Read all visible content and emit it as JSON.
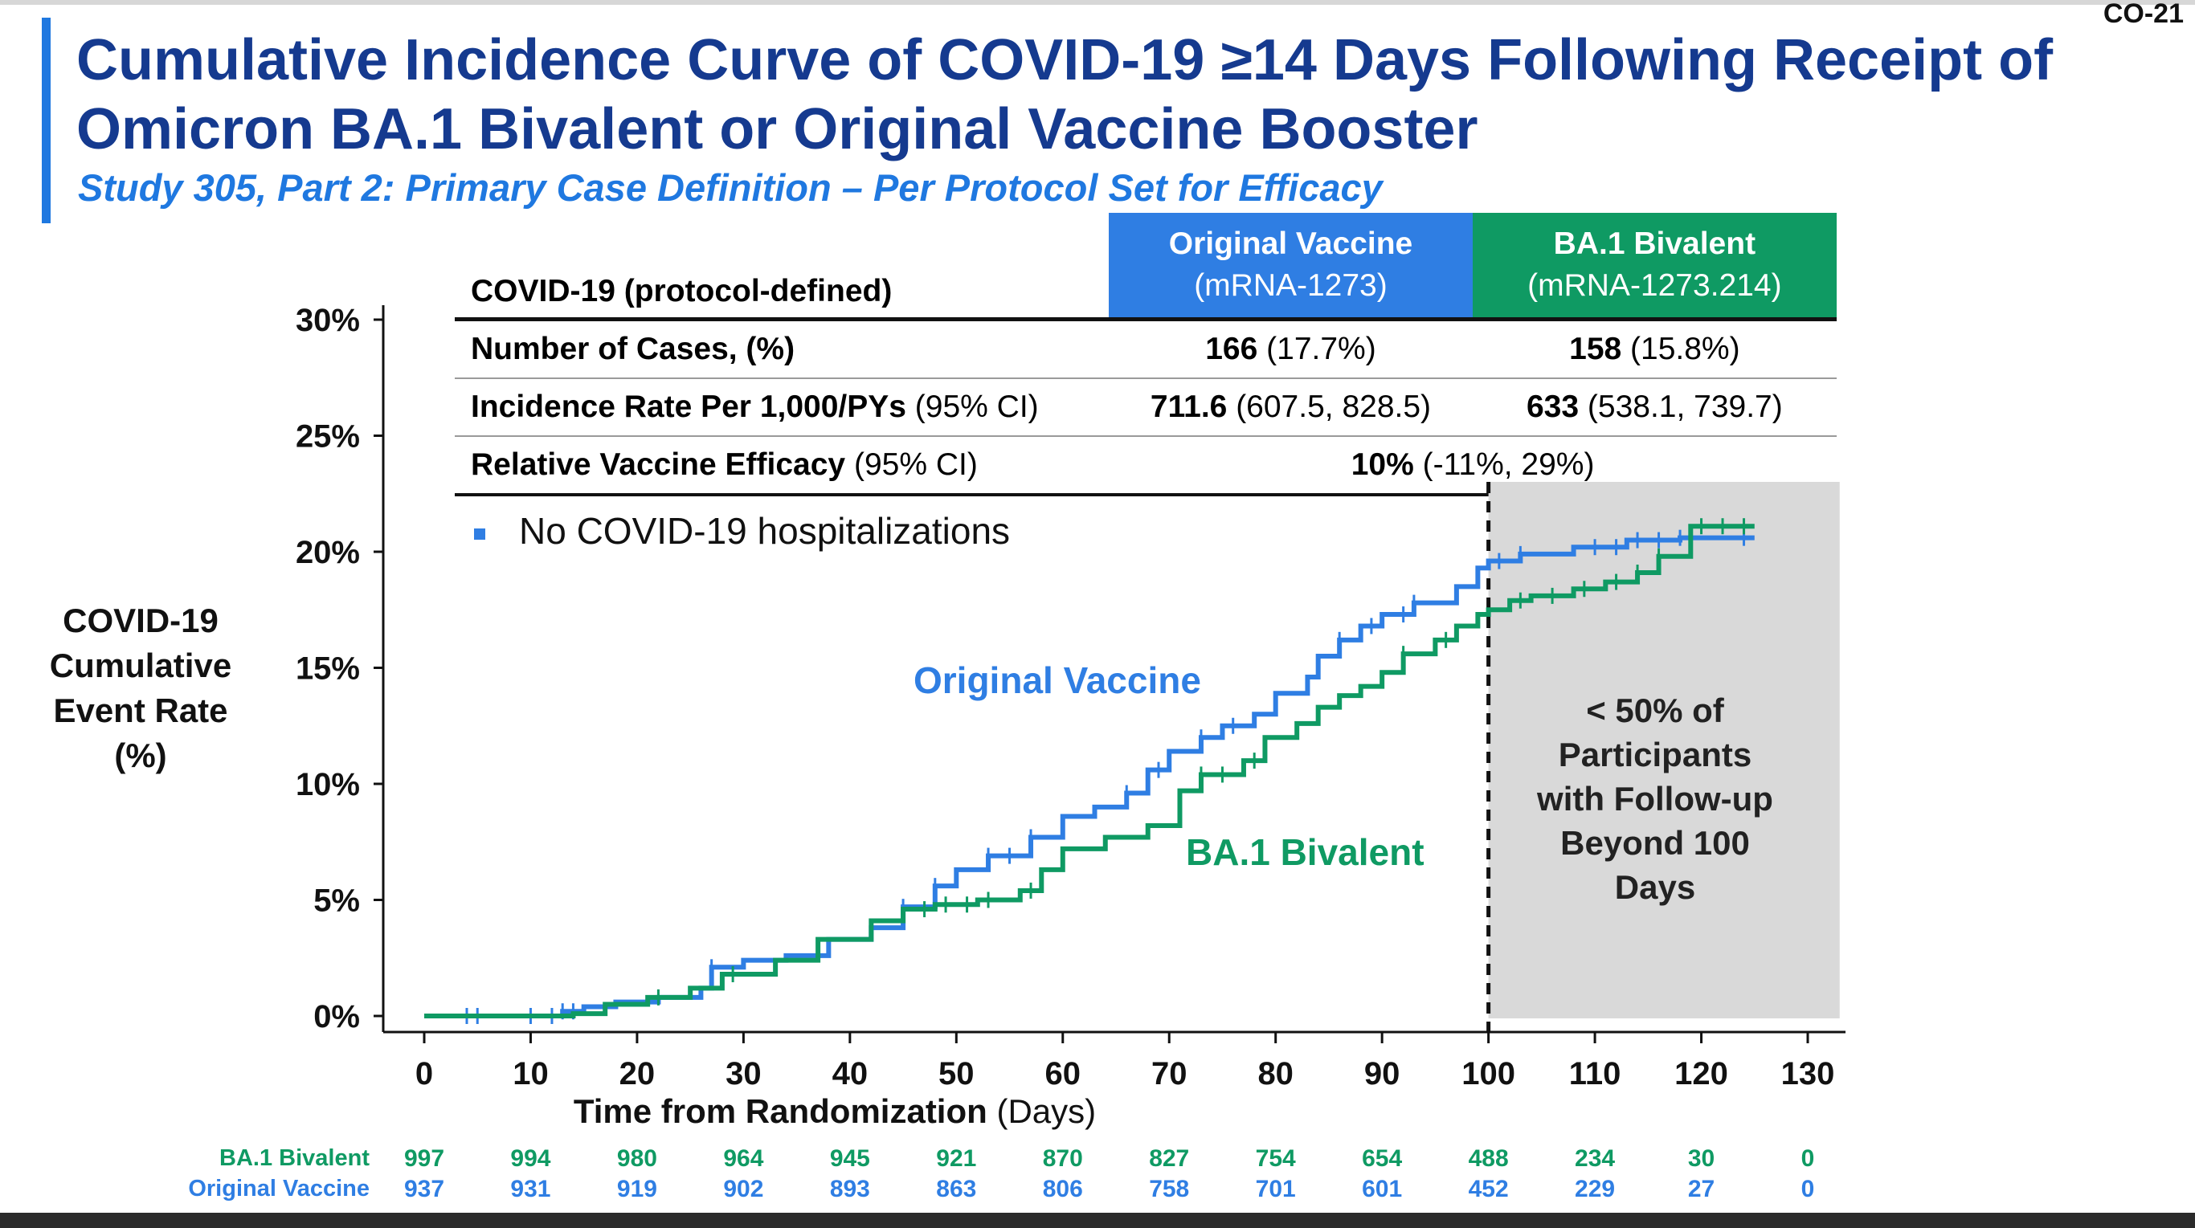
{
  "slide_number": "CO-21",
  "title": "Cumulative Incidence Curve of COVID-19 ≥14 Days Following Receipt of Omicron BA.1 Bivalent or Original Vaccine Booster",
  "subtitle": "Study 305, Part 2: Primary Case Definition – Per Protocol Set for Efficacy",
  "table": {
    "header_label": "COVID-19 (protocol-defined)",
    "col_orig_name": "Original Vaccine",
    "col_orig_code": "(mRNA-1273)",
    "col_biv_name": "BA.1 Bivalent",
    "col_biv_code": "(mRNA-1273.214)",
    "rows": {
      "cases": {
        "label": "Number of Cases, (%)",
        "orig_bold": "166",
        "orig_rest": " (17.7%)",
        "biv_bold": "158",
        "biv_rest": " (15.8%)"
      },
      "incidence": {
        "label": "Incidence Rate Per 1,000/PYs",
        "label_suffix": " (95% CI)",
        "orig_bold": "711.6",
        "orig_rest": " (607.5, 828.5)",
        "biv_bold": "633",
        "biv_rest": " (538.1, 739.7)"
      },
      "rve": {
        "label": "Relative Vaccine Efficacy",
        "label_suffix": " (95% CI)",
        "bold": "10%",
        "rest": " (-11%, 29%)"
      }
    }
  },
  "legend_note": "No COVID-19 hospitalizations",
  "shaded_note": [
    "< 50% of",
    "Participants",
    "with Follow-up",
    "Beyond 100",
    "Days"
  ],
  "colors": {
    "original": "#2f7ee3",
    "bivalent": "#0f9a63",
    "title": "#153a8f",
    "shade": "#d9d9d9"
  },
  "chart_data": {
    "type": "line",
    "step": true,
    "title": "",
    "xlabel": "Time from Randomization",
    "xlabel_unit": " (Days)",
    "ylabel": "COVID-19 Cumulative Event Rate (%)",
    "xlim": [
      0,
      130
    ],
    "ylim": [
      0,
      30
    ],
    "xticks": [
      0,
      10,
      20,
      30,
      40,
      50,
      60,
      70,
      80,
      90,
      100,
      110,
      120,
      130
    ],
    "yticks": [
      0,
      5,
      10,
      15,
      20,
      25,
      30
    ],
    "ytick_labels": [
      "0%",
      "5%",
      "10%",
      "15%",
      "20%",
      "25%",
      "30%"
    ],
    "shaded_region_x": [
      100,
      133
    ],
    "reference_line_x": 100,
    "series": [
      {
        "name": "Original Vaccine",
        "color": "#2f7ee3",
        "x": [
          0,
          10,
          13,
          15,
          18,
          22,
          26,
          27,
          30,
          34,
          38,
          42,
          45,
          48,
          50,
          53,
          57,
          60,
          63,
          66,
          68,
          70,
          73,
          75,
          78,
          80,
          83,
          84,
          86,
          88,
          90,
          93,
          97,
          99,
          100,
          103,
          108,
          113,
          118,
          125
        ],
        "y": [
          0,
          0,
          0.2,
          0.4,
          0.6,
          0.8,
          1.2,
          2.1,
          2.4,
          2.6,
          3.3,
          3.8,
          4.7,
          5.6,
          6.3,
          6.9,
          7.7,
          8.6,
          9.0,
          9.6,
          10.6,
          11.4,
          12.0,
          12.5,
          13.0,
          13.9,
          14.6,
          15.5,
          16.2,
          16.8,
          17.3,
          17.8,
          18.5,
          19.3,
          19.6,
          19.9,
          20.2,
          20.5,
          20.6,
          20.6
        ],
        "censor_x": [
          4,
          5,
          10,
          12,
          13,
          14,
          27,
          45,
          48,
          53,
          55,
          57,
          66,
          69,
          73,
          76,
          86,
          89,
          92,
          93,
          101,
          103,
          110,
          112,
          114,
          116,
          118,
          124
        ]
      },
      {
        "name": "BA.1 Bivalent",
        "color": "#0f9a63",
        "x": [
          0,
          14,
          17,
          21,
          25,
          28,
          33,
          37,
          42,
          45,
          48,
          52,
          56,
          58,
          60,
          64,
          68,
          71,
          73,
          77,
          79,
          82,
          84,
          86,
          88,
          90,
          92,
          95,
          97,
          99,
          100,
          102,
          104,
          108,
          111,
          114,
          116,
          119,
          125
        ],
        "y": [
          0,
          0.1,
          0.5,
          0.8,
          1.2,
          1.8,
          2.4,
          3.3,
          4.1,
          4.6,
          4.8,
          5.0,
          5.4,
          6.3,
          7.2,
          7.7,
          8.2,
          9.7,
          10.4,
          11.0,
          12.0,
          12.6,
          13.3,
          13.8,
          14.2,
          14.8,
          15.6,
          16.2,
          16.8,
          17.3,
          17.5,
          17.9,
          18.1,
          18.4,
          18.7,
          19.1,
          19.8,
          21.1,
          21.1
        ],
        "censor_x": [
          22,
          29,
          47,
          49,
          51,
          53,
          57,
          73,
          75,
          78,
          92,
          96,
          103,
          106,
          109,
          112,
          114,
          116,
          120,
          122,
          124
        ]
      }
    ],
    "risk_table": {
      "x": [
        0,
        10,
        20,
        30,
        40,
        50,
        60,
        70,
        80,
        90,
        100,
        110,
        120,
        130
      ],
      "rows": [
        {
          "name": "BA.1 Bivalent",
          "color": "#0f9a63",
          "values": [
            997,
            994,
            980,
            964,
            945,
            921,
            870,
            827,
            754,
            654,
            488,
            234,
            30,
            0
          ]
        },
        {
          "name": "Original Vaccine",
          "color": "#2f7ee3",
          "values": [
            937,
            931,
            919,
            902,
            893,
            863,
            806,
            758,
            701,
            601,
            452,
            229,
            27,
            0
          ]
        }
      ]
    }
  }
}
